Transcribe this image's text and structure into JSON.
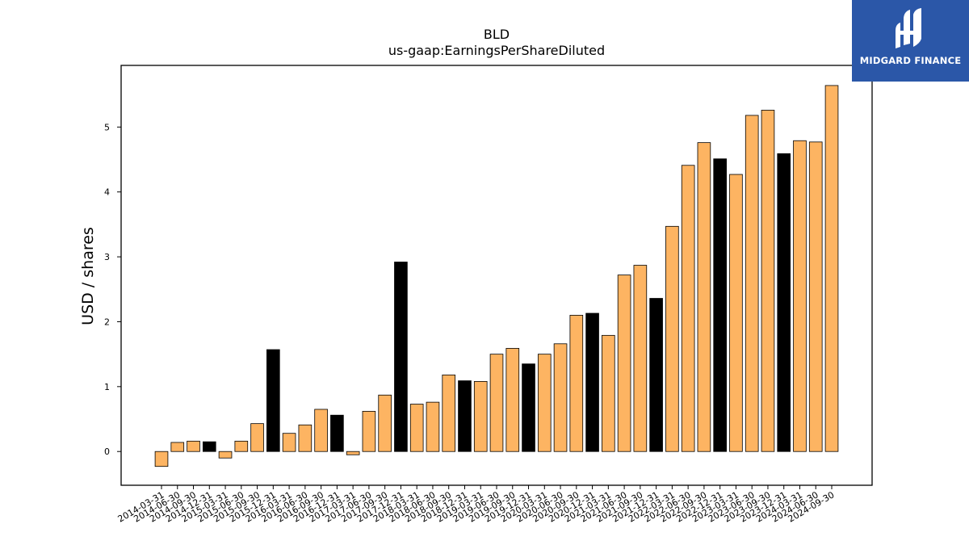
{
  "chart_data": {
    "type": "bar",
    "title": "BLD",
    "subtitle": "us-gaap:EarningsPerShareDiluted",
    "xlabel": "",
    "ylabel": "USD / shares",
    "ylim": [
      -0.52,
      5.95
    ],
    "yticks": [
      0,
      1,
      2,
      3,
      4,
      5
    ],
    "grid": false,
    "colors": {
      "quarterly": "#FDB462",
      "annual": "#000000",
      "edge": "#000000"
    },
    "categories": [
      "2014-03-31",
      "2014-06-30",
      "2014-09-30",
      "2014-12-31",
      "2015-03-31",
      "2015-06-30",
      "2015-09-30",
      "2015-12-31",
      "2016-03-31",
      "2016-06-30",
      "2016-09-30",
      "2016-12-31",
      "2017-03-31",
      "2017-06-30",
      "2017-09-30",
      "2017-12-31",
      "2018-03-31",
      "2018-06-30",
      "2018-09-30",
      "2018-12-31",
      "2019-03-31",
      "2019-06-30",
      "2019-09-30",
      "2019-12-31",
      "2020-03-31",
      "2020-06-30",
      "2020-09-30",
      "2020-12-31",
      "2021-03-31",
      "2021-06-30",
      "2021-09-30",
      "2021-12-31",
      "2022-03-31",
      "2022-06-30",
      "2022-09-30",
      "2022-12-31",
      "2023-03-31",
      "2023-06-30",
      "2023-09-30",
      "2023-12-31",
      "2024-03-31",
      "2024-06-30",
      "2024-09-30"
    ],
    "values": [
      -0.23,
      0.14,
      0.16,
      0.15,
      -0.1,
      0.16,
      0.43,
      1.57,
      0.28,
      0.41,
      0.65,
      0.56,
      -0.05,
      0.62,
      0.87,
      2.92,
      0.73,
      0.76,
      1.18,
      1.09,
      1.08,
      1.5,
      1.59,
      1.35,
      1.5,
      1.66,
      2.1,
      2.13,
      1.79,
      2.72,
      2.87,
      2.36,
      3.47,
      4.41,
      4.76,
      4.51,
      4.27,
      5.18,
      5.26,
      4.59,
      4.79,
      4.77,
      5.64
    ],
    "annual": [
      false,
      false,
      false,
      true,
      false,
      false,
      false,
      true,
      false,
      false,
      false,
      true,
      false,
      false,
      false,
      true,
      false,
      false,
      false,
      true,
      false,
      false,
      false,
      true,
      false,
      false,
      false,
      true,
      false,
      false,
      false,
      true,
      false,
      false,
      false,
      true,
      false,
      false,
      false,
      true,
      false,
      false,
      false
    ]
  },
  "logo": {
    "text": "MIDGARD FINANCE",
    "color": "#2b57a8"
  }
}
